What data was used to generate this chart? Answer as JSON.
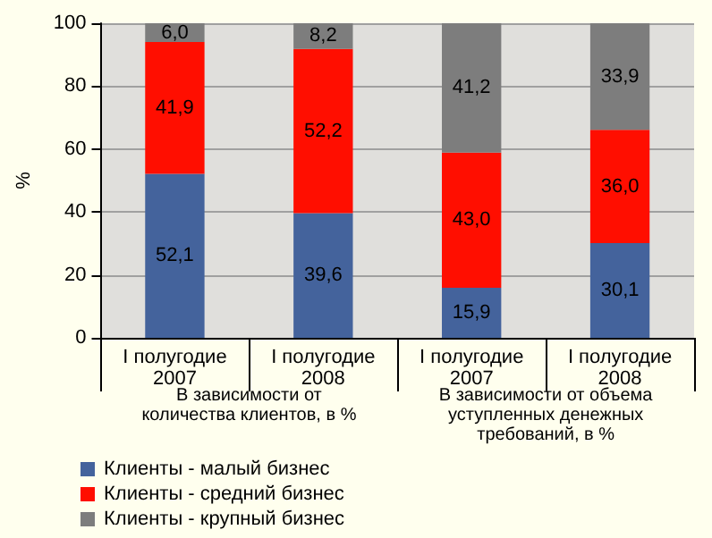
{
  "chart_data": {
    "type": "bar",
    "stacked": true,
    "ylabel": "%",
    "categories": [
      "I полугодие 2007",
      "I полугодие 2008",
      "I полугодие 2007",
      "I полугодие 2008"
    ],
    "series": [
      {
        "name": "Клиенты - малый бизнес",
        "color": "#44639c",
        "values": [
          52.1,
          39.6,
          15.9,
          30.1
        ],
        "value_labels": [
          "52,1",
          "39,6",
          "15,9",
          "30,1"
        ]
      },
      {
        "name": "Клиенты - средний бизнес",
        "color": "#ff0e00",
        "values": [
          41.9,
          52.2,
          43.0,
          36.0
        ],
        "value_labels": [
          "41,9",
          "52,2",
          "43,0",
          "36,0"
        ]
      },
      {
        "name": "Клиенты - крупный бизнес",
        "color": "#7d7d7d",
        "values": [
          6.0,
          8.2,
          41.2,
          33.9
        ],
        "value_labels": [
          "6,0",
          "8,2",
          "41,2",
          "33,9"
        ]
      }
    ],
    "ylim": [
      0,
      100
    ],
    "yticks": [
      0,
      20,
      40,
      60,
      80,
      100
    ],
    "grid": "y",
    "legend": "bottom left",
    "annotations": [
      {
        "text": "В зависимости от количества клиентов, в %"
      },
      {
        "text": "В зависимости от объема уступленных денежных требований, в %"
      }
    ]
  }
}
